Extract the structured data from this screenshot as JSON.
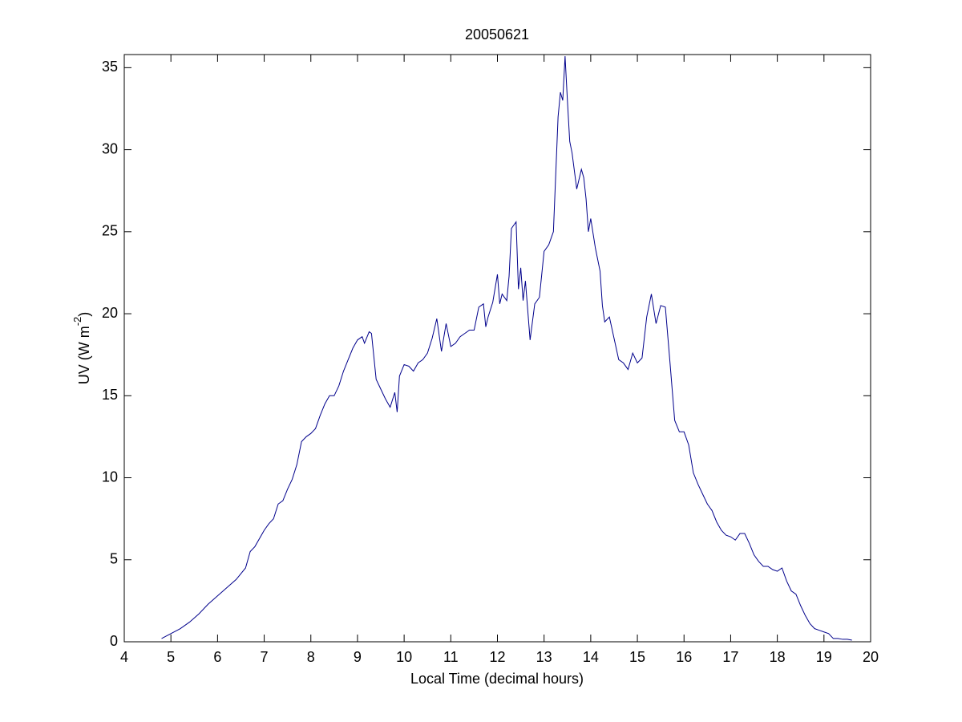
{
  "chart_data": {
    "type": "line",
    "title": "20050621",
    "xlabel": "Local Time (decimal hours)",
    "ylabel": {
      "text": "UV (W m",
      "superscript": "-2",
      "suffix": ")"
    },
    "xlim": [
      4,
      20
    ],
    "ylim": [
      0,
      35.8
    ],
    "xticks": [
      4,
      5,
      6,
      7,
      8,
      9,
      10,
      11,
      12,
      13,
      14,
      15,
      16,
      17,
      18,
      19,
      20
    ],
    "yticks": [
      0,
      5,
      10,
      15,
      20,
      25,
      30,
      35
    ],
    "grid": false,
    "series": [
      {
        "color": "#00008b",
        "x": [
          4.8,
          5.0,
          5.2,
          5.4,
          5.6,
          5.8,
          6.0,
          6.2,
          6.4,
          6.6,
          6.7,
          6.8,
          7.0,
          7.1,
          7.2,
          7.3,
          7.4,
          7.5,
          7.6,
          7.7,
          7.8,
          7.9,
          8.0,
          8.1,
          8.2,
          8.3,
          8.4,
          8.5,
          8.6,
          8.7,
          8.8,
          8.9,
          9.0,
          9.1,
          9.15,
          9.25,
          9.3,
          9.4,
          9.5,
          9.6,
          9.7,
          9.8,
          9.85,
          9.9,
          10.0,
          10.1,
          10.2,
          10.3,
          10.4,
          10.5,
          10.6,
          10.7,
          10.8,
          10.9,
          11.0,
          11.1,
          11.2,
          11.3,
          11.4,
          11.5,
          11.6,
          11.7,
          11.75,
          11.8,
          11.9,
          12.0,
          12.05,
          12.1,
          12.2,
          12.25,
          12.3,
          12.4,
          12.45,
          12.5,
          12.55,
          12.6,
          12.7,
          12.8,
          12.9,
          13.0,
          13.1,
          13.2,
          13.3,
          13.35,
          13.4,
          13.45,
          13.5,
          13.55,
          13.6,
          13.7,
          13.8,
          13.85,
          13.9,
          13.95,
          14.0,
          14.1,
          14.2,
          14.25,
          14.3,
          14.4,
          14.5,
          14.6,
          14.7,
          14.8,
          14.9,
          15.0,
          15.1,
          15.2,
          15.3,
          15.4,
          15.5,
          15.6,
          15.7,
          15.8,
          15.9,
          16.0,
          16.1,
          16.2,
          16.3,
          16.4,
          16.5,
          16.6,
          16.7,
          16.8,
          16.9,
          17.0,
          17.1,
          17.2,
          17.3,
          17.4,
          17.5,
          17.6,
          17.7,
          17.8,
          17.9,
          18.0,
          18.1,
          18.2,
          18.3,
          18.4,
          18.5,
          18.6,
          18.7,
          18.8,
          18.9,
          19.0,
          19.1,
          19.2,
          19.3,
          19.4,
          19.5,
          19.6
        ],
        "values": [
          0.2,
          0.5,
          0.8,
          1.2,
          1.7,
          2.3,
          2.8,
          3.3,
          3.8,
          4.5,
          5.5,
          5.8,
          6.8,
          7.2,
          7.5,
          8.4,
          8.6,
          9.3,
          9.9,
          10.8,
          12.2,
          12.5,
          12.7,
          13.0,
          13.8,
          14.5,
          15.0,
          15.0,
          15.6,
          16.5,
          17.2,
          17.9,
          18.4,
          18.6,
          18.2,
          18.9,
          18.8,
          16.0,
          15.4,
          14.8,
          14.3,
          15.2,
          14.0,
          16.2,
          16.9,
          16.8,
          16.5,
          17.0,
          17.2,
          17.6,
          18.5,
          19.7,
          17.7,
          19.4,
          18.0,
          18.2,
          18.6,
          18.8,
          19.0,
          19.0,
          20.4,
          20.6,
          19.2,
          19.8,
          20.7,
          22.4,
          20.6,
          21.2,
          20.8,
          22.3,
          25.2,
          25.6,
          21.5,
          22.8,
          20.8,
          22.0,
          18.4,
          20.6,
          21.0,
          23.8,
          24.2,
          25.0,
          32.0,
          33.5,
          33.0,
          35.7,
          33.0,
          30.5,
          29.8,
          27.6,
          28.8,
          28.3,
          27.0,
          25.0,
          25.8,
          24.0,
          22.6,
          20.5,
          19.5,
          19.8,
          18.5,
          17.2,
          17.0,
          16.6,
          17.6,
          17.0,
          17.3,
          19.8,
          21.2,
          19.4,
          20.5,
          20.4,
          17.0,
          13.5,
          12.8,
          12.8,
          12.0,
          10.3,
          9.6,
          9.0,
          8.4,
          8.0,
          7.3,
          6.8,
          6.5,
          6.4,
          6.2,
          6.6,
          6.6,
          6.0,
          5.3,
          4.9,
          4.6,
          4.6,
          4.4,
          4.3,
          4.5,
          3.7,
          3.1,
          2.9,
          2.2,
          1.6,
          1.1,
          0.8,
          0.7,
          0.6,
          0.5,
          0.2,
          0.2,
          0.15,
          0.15,
          0.1
        ]
      }
    ]
  }
}
